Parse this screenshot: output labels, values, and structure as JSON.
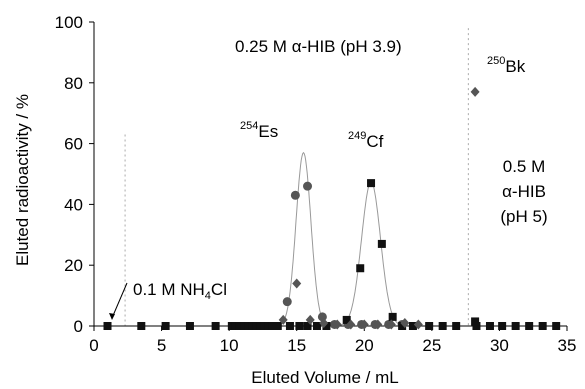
{
  "chart_data": {
    "type": "scatter",
    "xlabel": "Eluted Volume / mL",
    "ylabel": "Eluted radioactivity / %",
    "xlim": [
      0,
      35
    ],
    "ylim": [
      0,
      100
    ],
    "x_ticks": [
      0,
      5,
      10,
      15,
      20,
      25,
      30,
      35
    ],
    "y_ticks": [
      0,
      20,
      40,
      60,
      80,
      100
    ],
    "grid": false,
    "colors": {
      "axis": "#000000",
      "marker": "#555555",
      "square": "#111111",
      "curve": "#999999",
      "divider": "#aaaaaa"
    },
    "dividers_x": [
      2.3,
      27.7
    ],
    "annotations": {
      "eluent1": {
        "main": "0.1 M NH",
        "sub": "4",
        "tail": "Cl"
      },
      "eluent2": "0.25 M α-HIB (pH 3.9)",
      "eluent3": [
        "0.5 M",
        "α-HIB",
        "(pH 5)"
      ],
      "es": {
        "mass": "254",
        "symbol": "Es"
      },
      "cf": {
        "mass": "249",
        "symbol": "Cf"
      },
      "bk": {
        "mass": "250",
        "symbol": "Bk"
      }
    },
    "series": [
      {
        "marker": "circle",
        "points": [
          [
            14.3,
            8
          ],
          [
            14.9,
            43
          ],
          [
            15.8,
            46
          ],
          [
            16.9,
            3
          ],
          [
            17.8,
            0.5
          ],
          [
            18.8,
            0.5
          ],
          [
            19.8,
            0.5
          ],
          [
            20.8,
            0.5
          ],
          [
            21.8,
            0.5
          ],
          [
            22.8,
            0.5
          ]
        ],
        "peak": {
          "center": 15.5,
          "sigma": 0.55,
          "height": 57
        }
      },
      {
        "marker": "square",
        "points": [
          [
            1,
            0
          ],
          [
            3.5,
            0
          ],
          [
            5.3,
            0
          ],
          [
            7.1,
            0
          ],
          [
            9,
            0
          ],
          [
            10.2,
            0
          ],
          [
            10.5,
            0
          ],
          [
            10.8,
            0
          ],
          [
            11.1,
            0
          ],
          [
            11.4,
            0
          ],
          [
            11.7,
            0
          ],
          [
            12.0,
            0
          ],
          [
            12.3,
            0
          ],
          [
            12.6,
            0
          ],
          [
            12.9,
            0
          ],
          [
            13.2,
            0
          ],
          [
            13.6,
            0
          ],
          [
            14.5,
            0
          ],
          [
            15.2,
            0
          ],
          [
            15.8,
            0
          ],
          [
            16.5,
            0
          ],
          [
            17.2,
            0
          ],
          [
            18.7,
            2
          ],
          [
            19.7,
            19
          ],
          [
            20.5,
            47
          ],
          [
            21.3,
            27
          ],
          [
            22.1,
            3
          ],
          [
            22.8,
            0
          ],
          [
            23.6,
            0
          ],
          [
            24.8,
            0
          ],
          [
            25.8,
            0
          ],
          [
            26.8,
            0
          ],
          [
            28.2,
            1.5
          ],
          [
            28.3,
            0
          ],
          [
            29.3,
            0
          ],
          [
            30.2,
            0
          ],
          [
            31.2,
            0
          ],
          [
            32.2,
            0
          ],
          [
            33.2,
            0
          ],
          [
            34.2,
            0
          ]
        ],
        "peak": {
          "center": 20.5,
          "sigma": 0.7,
          "height": 47.5
        }
      },
      {
        "marker": "diamond",
        "points": [
          [
            14.0,
            2
          ],
          [
            15.0,
            14
          ],
          [
            16.0,
            2
          ],
          [
            17.0,
            1
          ],
          [
            18.0,
            0.5
          ],
          [
            19.0,
            0.5
          ],
          [
            20.0,
            0.5
          ],
          [
            21.0,
            0.5
          ],
          [
            22.0,
            0.5
          ],
          [
            23.0,
            1
          ],
          [
            24.0,
            0.5
          ],
          [
            28.2,
            77
          ]
        ]
      }
    ]
  }
}
